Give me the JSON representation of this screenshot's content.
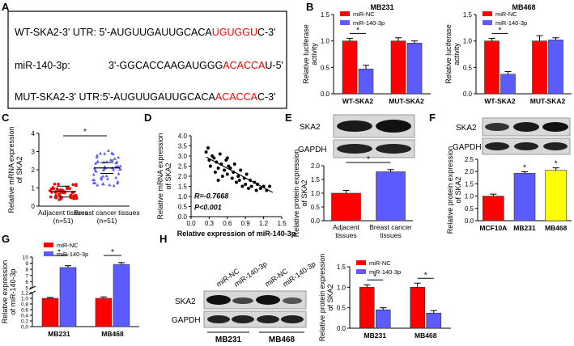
{
  "panel_letters": [
    "A",
    "B",
    "C",
    "D",
    "E",
    "F",
    "G",
    "H"
  ],
  "colors": {
    "red": "#ff0000",
    "blue": "#5b5bff",
    "yellow": "#ffff00",
    "highlight": "#ff0000"
  },
  "sequences": {
    "wt": {
      "label": "WT-SKA2-3' UTR:",
      "pre": "5'-AUGUUGAUUGCACA",
      "hl": "UGUGGU",
      "post": "C-3'"
    },
    "mir": {
      "label": "miR-140-3p:",
      "pre": "3'-GGCACCAAGAUGGG",
      "hl": "ACACCA",
      "post": "U-5'"
    },
    "mut": {
      "label": "MUT-SKA2-3' UTR:",
      "pre": "5'-AUGUUGAUUGCACA",
      "hl": "ACACCA",
      "post": "C-3'"
    }
  },
  "blots": {
    "E": {
      "bands": [
        "SKA2",
        "GAPDH"
      ]
    },
    "F": {
      "bands": [
        "SKA2",
        "GAPDH"
      ]
    },
    "H": {
      "bands": [
        "SKA2",
        "GAPDH"
      ],
      "lanes": [
        "miR-NC",
        "miR-140-3p",
        "miR-NC",
        "miR-140-3p"
      ],
      "groups": [
        "MB231",
        "MB468"
      ]
    }
  },
  "chart_data": [
    {
      "id": "B1",
      "type": "bar",
      "title": "MB231",
      "ylabel": "Relative luciferase activity",
      "categories": [
        "WT-SKA2",
        "MUT-SKA2"
      ],
      "ylim": [
        0,
        1.5
      ],
      "yticks": [
        "0.0",
        "0.5",
        "1.0",
        "1.5"
      ],
      "series": [
        {
          "name": "miR-NC",
          "values": [
            1.0,
            1.0
          ],
          "err": [
            0.05,
            0.06
          ]
        },
        {
          "name": "miR-140-3p",
          "values": [
            0.47,
            0.96
          ],
          "err": [
            0.07,
            0.04
          ]
        }
      ],
      "significance": [
        "*",
        ""
      ]
    },
    {
      "id": "B2",
      "type": "bar",
      "title": "MB468",
      "ylabel": "Relative luciferase activity",
      "categories": [
        "WT-SKA2",
        "MUT-SKA2"
      ],
      "ylim": [
        0,
        1.5
      ],
      "yticks": [
        "0.0",
        "0.5",
        "1.0",
        "1.5"
      ],
      "series": [
        {
          "name": "miR-NC",
          "values": [
            1.0,
            1.0
          ],
          "err": [
            0.05,
            0.1
          ]
        },
        {
          "name": "miR-140-3p",
          "values": [
            0.37,
            1.02
          ],
          "err": [
            0.05,
            0.04
          ]
        }
      ],
      "significance": [
        "*",
        ""
      ]
    },
    {
      "id": "C",
      "type": "scatter",
      "ylabel": "Relative mRNA expression of SKA2",
      "categories": [
        "Adjacent tissues(n=51)",
        "Breast cancer tissues(n=51)"
      ],
      "ylim": [
        0,
        4
      ],
      "yticks": [
        "0",
        "1",
        "2",
        "3",
        "4"
      ],
      "groups": [
        {
          "name": "Adjacent tissues(n=51)",
          "mean": 0.8
        },
        {
          "name": "Breast cancer tissues(n=51)",
          "mean": 2.1
        }
      ],
      "significance": "*"
    },
    {
      "id": "D",
      "type": "scatter",
      "xlabel": "Relative expression of miR-140-3p",
      "ylabel": "Relative mRNA expression of SKA2",
      "xlim": [
        0,
        1.5
      ],
      "ylim": [
        0,
        4
      ],
      "xticks": [
        "0.0",
        "0.3",
        "0.6",
        "0.9",
        "1.2",
        "1.5"
      ],
      "yticks": [
        "0.0",
        "0.5",
        "1.0",
        "1.5",
        "2.0",
        "2.5",
        "3.0",
        "3.5",
        "4.0"
      ],
      "annotation": [
        "R=-0.7668",
        "P<0.001"
      ],
      "points": [
        [
          0.25,
          3.2
        ],
        [
          0.3,
          2.8
        ],
        [
          0.32,
          2.5
        ],
        [
          0.35,
          3.0
        ],
        [
          0.38,
          2.9
        ],
        [
          0.4,
          2.2
        ],
        [
          0.42,
          2.7
        ],
        [
          0.45,
          2.4
        ],
        [
          0.48,
          3.1
        ],
        [
          0.5,
          2.6
        ],
        [
          0.52,
          2.0
        ],
        [
          0.55,
          2.3
        ],
        [
          0.58,
          2.8
        ],
        [
          0.6,
          2.1
        ],
        [
          0.62,
          2.5
        ],
        [
          0.65,
          2.4
        ],
        [
          0.68,
          1.9
        ],
        [
          0.7,
          2.2
        ],
        [
          0.72,
          2.6
        ],
        [
          0.75,
          1.7
        ],
        [
          0.78,
          2.0
        ],
        [
          0.8,
          1.8
        ],
        [
          0.82,
          2.3
        ],
        [
          0.85,
          1.5
        ],
        [
          0.88,
          1.9
        ],
        [
          0.9,
          1.6
        ],
        [
          0.92,
          2.1
        ],
        [
          0.95,
          1.4
        ],
        [
          0.98,
          1.8
        ],
        [
          1.0,
          1.5
        ],
        [
          1.05,
          1.7
        ],
        [
          1.08,
          1.3
        ],
        [
          1.1,
          1.6
        ],
        [
          1.15,
          1.4
        ],
        [
          1.2,
          1.5
        ],
        [
          1.25,
          1.3
        ],
        [
          1.3,
          1.5
        ],
        [
          0.28,
          3.4
        ],
        [
          0.45,
          1.8
        ],
        [
          0.6,
          2.9
        ]
      ],
      "fit": [
        [
          0.25,
          2.95
        ],
        [
          1.35,
          1.2
        ]
      ]
    },
    {
      "id": "E",
      "type": "bar",
      "ylabel": "Relative protein expression of SKA2",
      "categories": [
        "Adjacent tissues",
        "Breast cancer tissues"
      ],
      "ylim": [
        0,
        2.0
      ],
      "yticks": [
        "0.0",
        "0.5",
        "1.0",
        "1.5",
        "2.0"
      ],
      "values": [
        1.0,
        1.78
      ],
      "err": [
        0.1,
        0.08
      ],
      "colors": [
        "#ff0000",
        "#5b5bff"
      ],
      "significance": "*"
    },
    {
      "id": "F",
      "type": "bar",
      "ylabel": "Relative protein expression of SKA2",
      "categories": [
        "MCF10A",
        "MB231",
        "MB468"
      ],
      "ylim": [
        0,
        2.5
      ],
      "yticks": [
        "0.0",
        "0.5",
        "1.0",
        "1.5",
        "2.0",
        "2.5"
      ],
      "values": [
        1.0,
        1.93,
        2.05
      ],
      "err": [
        0.08,
        0.06,
        0.1
      ],
      "colors": [
        "#ff0000",
        "#5b5bff",
        "#ffff00"
      ],
      "significance": [
        "",
        "*",
        "*"
      ]
    },
    {
      "id": "G",
      "type": "bar",
      "ylabel": "Relative expression of miR-140-3p",
      "categories": [
        "MB231",
        "MB468"
      ],
      "axis_break": true,
      "yticks": [
        "0.0",
        "0.2",
        "0.4",
        "0.6",
        "0.8",
        "1.0",
        "1.2",
        "5",
        "6",
        "7",
        "8",
        "9",
        "10"
      ],
      "series": [
        {
          "name": "miR-NC",
          "values": [
            1.0,
            1.0
          ],
          "err": [
            0.03,
            0.05
          ]
        },
        {
          "name": "miR-140-3p",
          "values": [
            8.3,
            8.8
          ],
          "err": [
            0.3,
            0.3
          ]
        }
      ],
      "significance": [
        "*",
        "*"
      ]
    },
    {
      "id": "H",
      "type": "bar",
      "ylabel": "Relative protein expression of SKA2",
      "categories": [
        "MB231",
        "MB468"
      ],
      "ylim": [
        0,
        1.5
      ],
      "yticks": [
        "0.0",
        "0.5",
        "1.0",
        "1.5"
      ],
      "series": [
        {
          "name": "miR-NC",
          "values": [
            1.0,
            1.0
          ],
          "err": [
            0.06,
            0.1
          ]
        },
        {
          "name": "miR-140-3p",
          "values": [
            0.45,
            0.37
          ],
          "err": [
            0.05,
            0.06
          ]
        }
      ],
      "significance": [
        "*",
        "*"
      ]
    }
  ]
}
